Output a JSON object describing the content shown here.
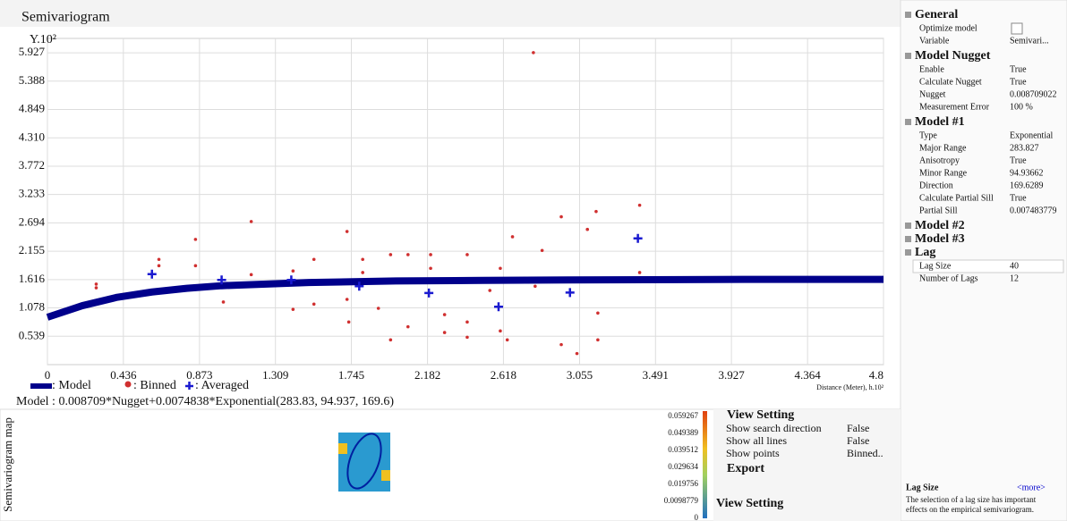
{
  "header": {
    "title": "Semivariogram"
  },
  "chart_data": {
    "type": "scatter",
    "y_label": "Y.10²",
    "x_label": "Distance (Meter), h.10²",
    "xlim": [
      0,
      4.8
    ],
    "ylim": [
      0,
      6.2
    ],
    "xticks": [
      0,
      0.436,
      0.873,
      1.309,
      1.745,
      2.182,
      2.618,
      3.055,
      3.491,
      3.927,
      4.364,
      4.8
    ],
    "yticks": [
      0.539,
      1.078,
      1.616,
      2.155,
      2.694,
      3.233,
      3.772,
      {
        "value": 4.31,
        "label": "4.310"
      },
      4.849,
      5.388,
      5.927
    ],
    "grid": true,
    "series": [
      {
        "name": ": Model",
        "color": "#00008b",
        "x": [
          0,
          0.2,
          0.4,
          0.6,
          0.8,
          1.0,
          1.5,
          2.0,
          2.5,
          3.0,
          4.0,
          4.8
        ],
        "values": [
          0.9,
          1.12,
          1.28,
          1.38,
          1.45,
          1.5,
          1.56,
          1.59,
          1.6,
          1.61,
          1.62,
          1.62
        ]
      },
      {
        "name": ": Binned",
        "color": "#d03030",
        "x": [
          0.28,
          0.28,
          0.64,
          0.64,
          0.85,
          0.85,
          1.01,
          1.17,
          1.17,
          1.41,
          1.41,
          1.53,
          1.53,
          1.72,
          1.72,
          1.73,
          1.81,
          1.81,
          1.9,
          1.97,
          1.97,
          2.07,
          2.07,
          2.2,
          2.2,
          2.28,
          2.28,
          2.41,
          2.41,
          2.41,
          2.54,
          2.6,
          2.6,
          2.64,
          2.67,
          2.79,
          2.8,
          2.84,
          2.95,
          2.95,
          3.04,
          3.1,
          3.15,
          3.16,
          3.16,
          3.4,
          3.4
        ],
        "values": [
          1.53,
          1.46,
          2.0,
          1.88,
          2.38,
          1.88,
          1.19,
          2.72,
          1.71,
          1.78,
          1.05,
          2.0,
          1.15,
          2.53,
          1.24,
          0.81,
          2.0,
          1.75,
          1.07,
          0.47,
          2.09,
          2.09,
          0.72,
          1.83,
          2.09,
          0.95,
          0.61,
          2.09,
          0.81,
          0.52,
          1.41,
          1.83,
          0.64,
          0.47,
          2.43,
          5.93,
          1.49,
          2.17,
          0.38,
          2.81,
          0.21,
          2.57,
          2.91,
          0.98,
          0.47,
          3.03,
          1.75
        ]
      },
      {
        "name": ": Averaged",
        "color": "#1a1ad0",
        "x": [
          0.6,
          1.0,
          1.4,
          1.79,
          2.19,
          2.59,
          3.0,
          3.39
        ],
        "values": [
          1.72,
          1.61,
          1.61,
          1.49,
          1.36,
          1.1,
          1.37,
          2.4
        ]
      }
    ],
    "formula": "Model : 0.008709*Nugget+0.0074838*Exponential(283.83, 94.937, 169.6)"
  },
  "properties": {
    "sections": [
      {
        "name": "General",
        "rows": [
          [
            "Optimize model",
            ""
          ],
          [
            "Variable",
            "Semivari..."
          ]
        ]
      },
      {
        "name": "Model Nugget",
        "rows": [
          [
            "Enable",
            "True"
          ],
          [
            "Calculate Nugget",
            "True"
          ],
          [
            "Nugget",
            "0.008709022"
          ],
          [
            "Measurement Error",
            "100    %"
          ]
        ]
      },
      {
        "name": "Model #1",
        "rows": [
          [
            "Type",
            "Exponential"
          ],
          [
            "Major Range",
            "283.827"
          ],
          [
            "Anisotropy",
            "True"
          ],
          [
            "Minor Range",
            "94.93662"
          ],
          [
            "Direction",
            "169.6289"
          ],
          [
            "Calculate Partial Sill",
            "True"
          ],
          [
            "Partial Sill",
            "0.007483779"
          ]
        ]
      },
      {
        "name": "Model #2",
        "rows": []
      },
      {
        "name": "Model #3",
        "rows": []
      },
      {
        "name": "Lag",
        "rows": [
          [
            "Lag Size",
            "40"
          ],
          [
            "Number of Lags",
            "12"
          ]
        ]
      }
    ]
  },
  "help": {
    "title": "Lag Size",
    "link": "<more>",
    "text": [
      "The selection of a lag size has important",
      "effects on the empirical semivariogram."
    ]
  },
  "map": {
    "label": "Semivariogram map",
    "scale": [
      "0.059267",
      "0.049389",
      "0.039512",
      "0.029634",
      "0.019756",
      "0.0098779",
      "0"
    ]
  },
  "view_setting": {
    "title": "View Setting",
    "rows": [
      [
        "Show search direction",
        "False"
      ],
      [
        "Show all lines",
        "False"
      ],
      [
        "Show points",
        "Binned.."
      ]
    ],
    "export": "Export",
    "footer": "View Setting"
  }
}
